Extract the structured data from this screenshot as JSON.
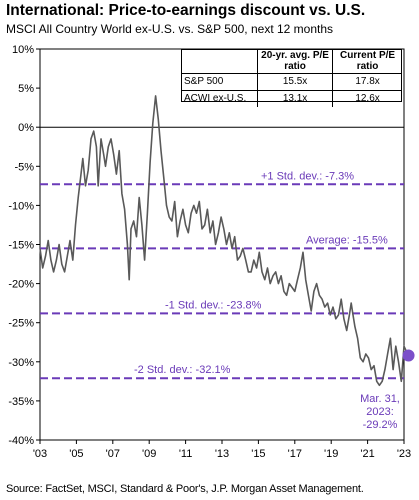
{
  "title": "International: Price-to-earnings discount vs. U.S.",
  "subtitle": "MSCI All Country World ex-U.S. vs. S&P 500, next 12 months",
  "source": "Source: FactSet, MSCI, Standard & Poor's, J.P. Morgan Asset Management.",
  "table": {
    "headers": [
      "",
      "20-yr. avg. P/E ratio",
      "Current P/E ratio"
    ],
    "rows": [
      [
        "S&P 500",
        "15.5x",
        "17.8x"
      ],
      [
        "ACWI ex-U.S.",
        "13.1x",
        "12.6x"
      ]
    ]
  },
  "colors": {
    "series": "#595959",
    "reference": "#6a3ab8",
    "marker": "#7b4fc9"
  },
  "chart_data": {
    "type": "line",
    "ylim": [
      -40,
      10
    ],
    "xlim": [
      2003,
      2023
    ],
    "y_ticks": [
      10,
      5,
      0,
      -5,
      -10,
      -15,
      -20,
      -25,
      -30,
      -35,
      -40
    ],
    "y_tick_labels": [
      "10%",
      "5%",
      "0%",
      "-5%",
      "-10%",
      "-15%",
      "-20%",
      "-25%",
      "-30%",
      "-35%",
      "-40%"
    ],
    "x_ticks": [
      2003,
      2005,
      2007,
      2009,
      2011,
      2013,
      2015,
      2017,
      2019,
      2021,
      2023
    ],
    "x_tick_labels": [
      "'03",
      "'05",
      "'07",
      "'09",
      "'11",
      "'13",
      "'15",
      "'17",
      "'19",
      "'21",
      "'23"
    ],
    "series": [
      {
        "x": [
          2003.0,
          2003.15,
          2003.3,
          2003.45,
          2003.6,
          2003.75,
          2003.9,
          2004.05,
          2004.2,
          2004.35,
          2004.5,
          2004.65,
          2004.8,
          2004.95,
          2005.1,
          2005.25,
          2005.35,
          2005.5,
          2005.65,
          2005.8,
          2005.95,
          2006.1,
          2006.2,
          2006.35,
          2006.5,
          2006.6,
          2006.75,
          2006.9,
          2007.05,
          2007.2,
          2007.35,
          2007.5,
          2007.65,
          2007.8,
          2007.9,
          2008.0,
          2008.15,
          2008.3,
          2008.45,
          2008.6,
          2008.75,
          2008.9,
          2009.05,
          2009.2,
          2009.35,
          2009.5,
          2009.65,
          2009.8,
          2009.95,
          2010.1,
          2010.25,
          2010.4,
          2010.55,
          2010.7,
          2010.85,
          2011.0,
          2011.15,
          2011.3,
          2011.45,
          2011.6,
          2011.75,
          2011.9,
          2012.05,
          2012.2,
          2012.35,
          2012.5,
          2012.65,
          2012.8,
          2012.95,
          2013.1,
          2013.25,
          2013.4,
          2013.55,
          2013.7,
          2013.85,
          2014.0,
          2014.15,
          2014.3,
          2014.45,
          2014.6,
          2014.75,
          2014.9,
          2015.05,
          2015.2,
          2015.35,
          2015.5,
          2015.65,
          2015.8,
          2015.95,
          2016.1,
          2016.25,
          2016.4,
          2016.55,
          2016.7,
          2016.85,
          2017.0,
          2017.15,
          2017.3,
          2017.45,
          2017.6,
          2017.75,
          2017.9,
          2018.05,
          2018.2,
          2018.35,
          2018.5,
          2018.65,
          2018.8,
          2018.95,
          2019.1,
          2019.25,
          2019.4,
          2019.55,
          2019.7,
          2019.85,
          2020.0,
          2020.1,
          2020.2,
          2020.3,
          2020.45,
          2020.6,
          2020.75,
          2020.9,
          2021.05,
          2021.2,
          2021.35,
          2021.5,
          2021.65,
          2021.8,
          2021.95,
          2022.1,
          2022.25,
          2022.4,
          2022.55,
          2022.7,
          2022.85,
          2023.0,
          2023.1,
          2023.25
        ],
        "y": [
          -15.5,
          -18.0,
          -16.5,
          -14.5,
          -17.0,
          -18.5,
          -17.0,
          -15.0,
          -17.5,
          -18.5,
          -16.5,
          -14.5,
          -17.0,
          -12.5,
          -9.0,
          -6.0,
          -4.0,
          -7.5,
          -5.5,
          -1.5,
          -0.5,
          -2.5,
          -7.5,
          -1.5,
          -3.5,
          -5.0,
          -2.5,
          -1.5,
          -3.5,
          -6.0,
          -3.0,
          -8.5,
          -10.5,
          -15.0,
          -19.5,
          -13.0,
          -12.0,
          -14.0,
          -9.0,
          -12.5,
          -17.0,
          -11.0,
          -4.5,
          0.5,
          4.0,
          1.0,
          -3.0,
          -6.5,
          -10.0,
          -11.5,
          -12.0,
          -9.5,
          -14.0,
          -12.0,
          -10.5,
          -12.5,
          -13.5,
          -11.0,
          -10.0,
          -11.0,
          -9.5,
          -13.0,
          -12.5,
          -10.5,
          -13.5,
          -12.0,
          -15.0,
          -13.5,
          -11.5,
          -13.0,
          -15.0,
          -13.5,
          -15.5,
          -14.0,
          -17.0,
          -16.5,
          -15.5,
          -17.0,
          -18.5,
          -18.5,
          -17.0,
          -18.0,
          -16.0,
          -18.5,
          -19.5,
          -18.0,
          -20.0,
          -19.0,
          -18.5,
          -20.0,
          -19.0,
          -21.0,
          -21.5,
          -20.0,
          -20.5,
          -21.0,
          -19.5,
          -18.0,
          -16.0,
          -19.5,
          -21.5,
          -23.5,
          -21.0,
          -20.0,
          -21.5,
          -22.0,
          -23.0,
          -22.5,
          -24.0,
          -23.0,
          -24.5,
          -24.0,
          -22.0,
          -24.5,
          -26.0,
          -24.0,
          -22.5,
          -24.0,
          -25.5,
          -27.0,
          -29.5,
          -30.0,
          -29.0,
          -29.5,
          -31.0,
          -30.5,
          -32.5,
          -33.0,
          -32.5,
          -31.0,
          -29.0,
          -27.0,
          -31.0,
          -28.0,
          -30.0,
          -32.5,
          -28.0,
          -28.5,
          -29.2
        ]
      }
    ],
    "reference_lines": [
      {
        "label": "+1 Std. dev.: -7.3%",
        "value": -7.3
      },
      {
        "label": "Average: -15.5%",
        "value": -15.5
      },
      {
        "label": "-1 Std. dev.: -23.8%",
        "value": -23.8
      },
      {
        "label": "-2 Std. dev.: -32.1%",
        "value": -32.1
      }
    ],
    "current_point": {
      "x": 2023.25,
      "y": -29.2,
      "label_lines": [
        "Mar. 31,",
        "2023:",
        "-29.2%"
      ]
    }
  }
}
